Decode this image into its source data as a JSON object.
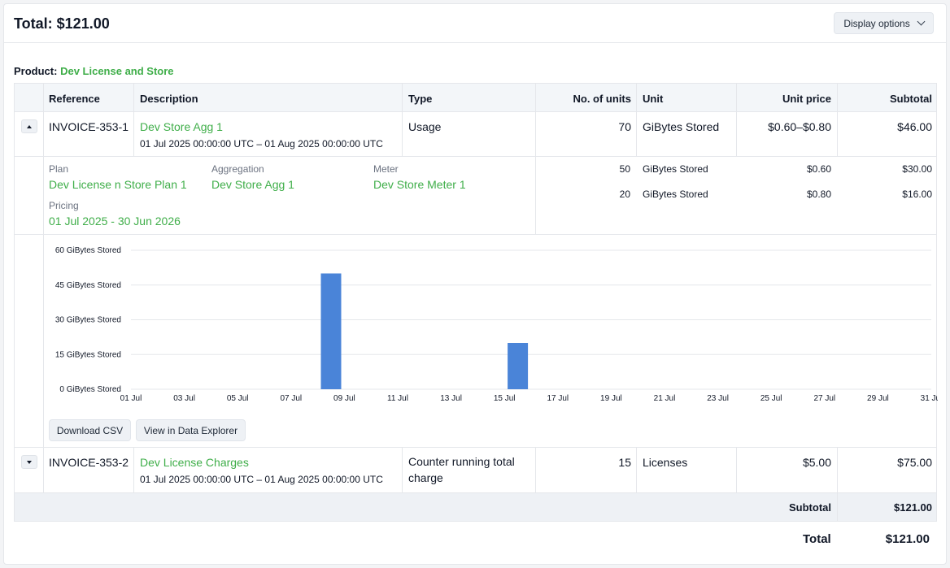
{
  "header": {
    "total_label": "Total: $121.00",
    "display_options_label": "Display options"
  },
  "product": {
    "prefix": "Product:",
    "name": "Dev License and Store"
  },
  "table": {
    "columns": [
      "Reference",
      "Description",
      "Type",
      "No. of units",
      "Unit",
      "Unit price",
      "Subtotal"
    ],
    "rows": [
      {
        "reference": "INVOICE-353-1",
        "description": "Dev Store Agg 1",
        "period": "01 Jul 2025 00:00:00 UTC – 01 Aug 2025 00:00:00 UTC",
        "type": "Usage",
        "units": "70",
        "unit": "GiBytes Stored",
        "unit_price": "$0.60–$0.80",
        "subtotal": "$46.00",
        "expanded": true
      },
      {
        "reference": "INVOICE-353-2",
        "description": "Dev License Charges",
        "period": "01 Jul 2025 00:00:00 UTC – 01 Aug 2025 00:00:00 UTC",
        "type": "Counter running total charge",
        "units": "15",
        "unit": "Licenses",
        "unit_price": "$5.00",
        "subtotal": "$75.00",
        "expanded": false
      }
    ],
    "detail": {
      "plan_label": "Plan",
      "plan_value": "Dev License n Store Plan 1",
      "aggregation_label": "Aggregation",
      "aggregation_value": "Dev Store Agg 1",
      "meter_label": "Meter",
      "meter_value": "Dev Store Meter 1",
      "pricing_label": "Pricing",
      "pricing_value": "01 Jul 2025 - 30 Jun 2026",
      "tiers": [
        {
          "units": "50",
          "unit": "GiBytes Stored",
          "price": "$0.60",
          "subtotal": "$30.00"
        },
        {
          "units": "20",
          "unit": "GiBytes Stored",
          "price": "$0.80",
          "subtotal": "$16.00"
        }
      ]
    },
    "buttons": {
      "download_csv": "Download CSV",
      "view_explorer": "View in Data Explorer"
    },
    "footer": {
      "subtotal_label": "Subtotal",
      "subtotal_value": "$121.00"
    }
  },
  "grand_total": {
    "label": "Total",
    "value": "$121.00"
  },
  "chart_data": {
    "type": "bar",
    "x_dates": [
      "01 Jul",
      "02 Jul",
      "03 Jul",
      "04 Jul",
      "05 Jul",
      "06 Jul",
      "07 Jul",
      "08 Jul",
      "09 Jul",
      "10 Jul",
      "11 Jul",
      "12 Jul",
      "13 Jul",
      "14 Jul",
      "15 Jul",
      "16 Jul",
      "17 Jul",
      "18 Jul",
      "19 Jul",
      "20 Jul",
      "21 Jul",
      "22 Jul",
      "23 Jul",
      "24 Jul",
      "25 Jul",
      "26 Jul",
      "27 Jul",
      "28 Jul",
      "29 Jul",
      "30 Jul",
      "31 Jul"
    ],
    "x_tick_labels": [
      "01 Jul",
      "03 Jul",
      "05 Jul",
      "07 Jul",
      "09 Jul",
      "11 Jul",
      "13 Jul",
      "15 Jul",
      "17 Jul",
      "19 Jul",
      "21 Jul",
      "23 Jul",
      "25 Jul",
      "27 Jul",
      "29 Jul",
      "31 Jul"
    ],
    "values": [
      0,
      0,
      0,
      0,
      0,
      0,
      0,
      50,
      0,
      0,
      0,
      0,
      0,
      0,
      20,
      0,
      0,
      0,
      0,
      0,
      0,
      0,
      0,
      0,
      0,
      0,
      0,
      0,
      0,
      0,
      0
    ],
    "y_ticks": [
      "0 GiBytes Stored",
      "15 GiBytes Stored",
      "30 GiBytes Stored",
      "45 GiBytes Stored",
      "60 GiBytes Stored"
    ],
    "ylim": [
      0,
      60
    ],
    "grid": true,
    "bar_color": "#4a84d8"
  }
}
